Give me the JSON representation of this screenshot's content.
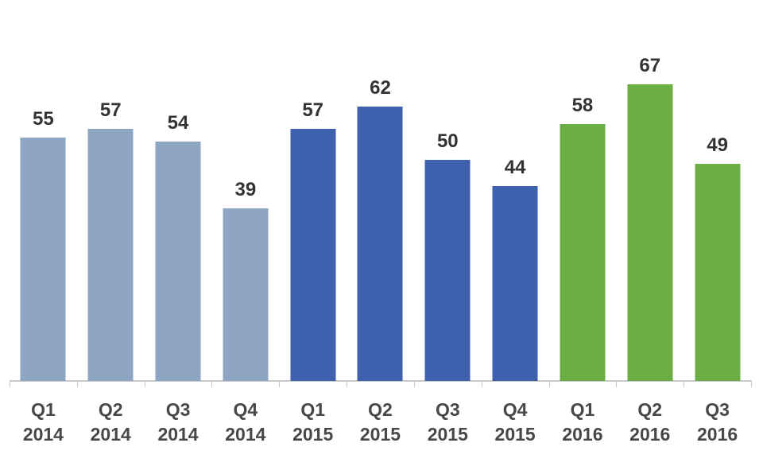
{
  "chart_data": {
    "type": "bar",
    "title": "",
    "xlabel": "",
    "ylabel": "",
    "categories": [
      "Q1 2014",
      "Q2 2014",
      "Q3 2014",
      "Q4 2014",
      "Q1 2015",
      "Q2 2015",
      "Q3 2015",
      "Q4 2015",
      "Q1 2016",
      "Q2 2016",
      "Q3 2016"
    ],
    "values": [
      55,
      57,
      54,
      39,
      57,
      62,
      50,
      44,
      58,
      67,
      49
    ],
    "bars": [
      {
        "quarter": "Q1",
        "year": "2014",
        "value": 55
      },
      {
        "quarter": "Q2",
        "year": "2014",
        "value": 57
      },
      {
        "quarter": "Q3",
        "year": "2014",
        "value": 54
      },
      {
        "quarter": "Q4",
        "year": "2014",
        "value": 39
      },
      {
        "quarter": "Q1",
        "year": "2015",
        "value": 57
      },
      {
        "quarter": "Q2",
        "year": "2015",
        "value": 62
      },
      {
        "quarter": "Q3",
        "year": "2015",
        "value": 50
      },
      {
        "quarter": "Q4",
        "year": "2015",
        "value": 44
      },
      {
        "quarter": "Q1",
        "year": "2016",
        "value": 58
      },
      {
        "quarter": "Q2",
        "year": "2016",
        "value": 67
      },
      {
        "quarter": "Q3",
        "year": "2016",
        "value": 49
      }
    ],
    "series_colors": {
      "2014": "#8EA5C3",
      "2015": "#3F60AF",
      "2016": "#6CAE45"
    },
    "axis_color": "#c9c9c9",
    "value_label_color": "#333333",
    "tick_label_color": "#474747",
    "ylim": [
      0,
      70
    ],
    "grid": false,
    "legend": "none",
    "value_labels": true
  }
}
